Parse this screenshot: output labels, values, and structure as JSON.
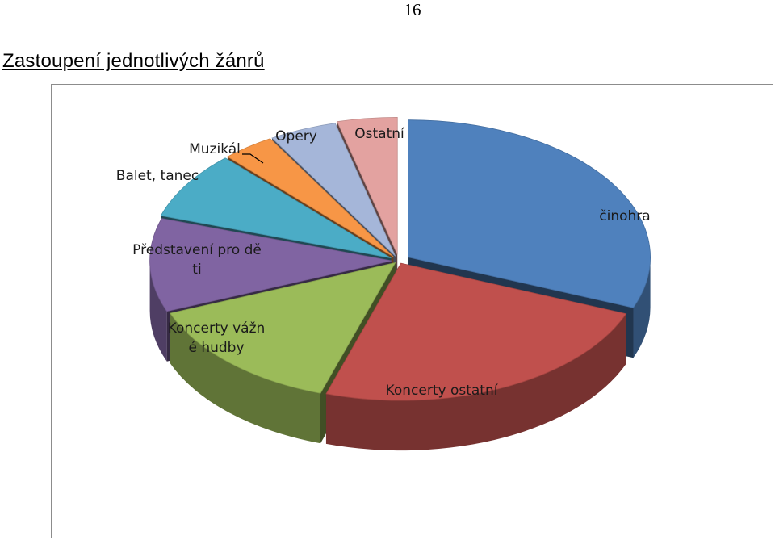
{
  "page_number": "16",
  "heading": "Zastoupení jednotlivých žánrů",
  "chart_data": {
    "type": "pie",
    "title": "",
    "exploded": true,
    "three_d": true,
    "legend": "none",
    "slices": [
      {
        "label": "činohra",
        "value": 31,
        "color": "#4f81bd"
      },
      {
        "label": "Koncerty ostatní",
        "value": 24,
        "color": "#c0504d"
      },
      {
        "label": "Koncerty vážné hudby",
        "value": 14,
        "color": "#9bbb59"
      },
      {
        "label": "Představení pro děti",
        "value": 11,
        "color": "#8064a2"
      },
      {
        "label": "Balet, tanec",
        "value": 8,
        "color": "#4bacc6"
      },
      {
        "label": "Muzikál",
        "value": 3.5,
        "color": "#f79646"
      },
      {
        "label": "Opery",
        "value": 4.5,
        "color": "#a5b6d9"
      },
      {
        "label": "Ostatní",
        "value": 4,
        "color": "#e3a2a0"
      }
    ]
  }
}
